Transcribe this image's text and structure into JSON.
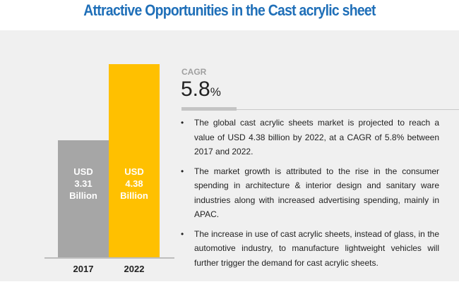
{
  "title": "Attractive Opportunities in the Cast acrylic sheet",
  "cagr": {
    "label": "CAGR",
    "value": "5.8",
    "unit": "%"
  },
  "bullets": [
    "The global cast acrylic sheets market is projected to reach a value of USD 4.38 billion by 2022, at a CAGR of 5.8% between 2017 and 2022.",
    "The market growth is attributed to the rise in the consumer spending in architecture & interior design and sanitary ware industries along with increased advertising spending, mainly in APAC.",
    "The increase in use of cast acrylic sheets, instead of glass, in the automotive industry, to manufacture lightweight vehicles will further trigger the demand for cast acrylic sheets."
  ],
  "chart_data": {
    "type": "bar",
    "categories": [
      "2017",
      "2022"
    ],
    "values": [
      3.31,
      4.38
    ],
    "data_labels": [
      [
        "USD",
        "3.31",
        "Billion"
      ],
      [
        "USD",
        "4.38",
        "Billion"
      ]
    ],
    "colors": [
      "#a6a6a6",
      "#ffc000"
    ],
    "title": "",
    "xlabel": "",
    "ylabel": "",
    "grid": false
  }
}
